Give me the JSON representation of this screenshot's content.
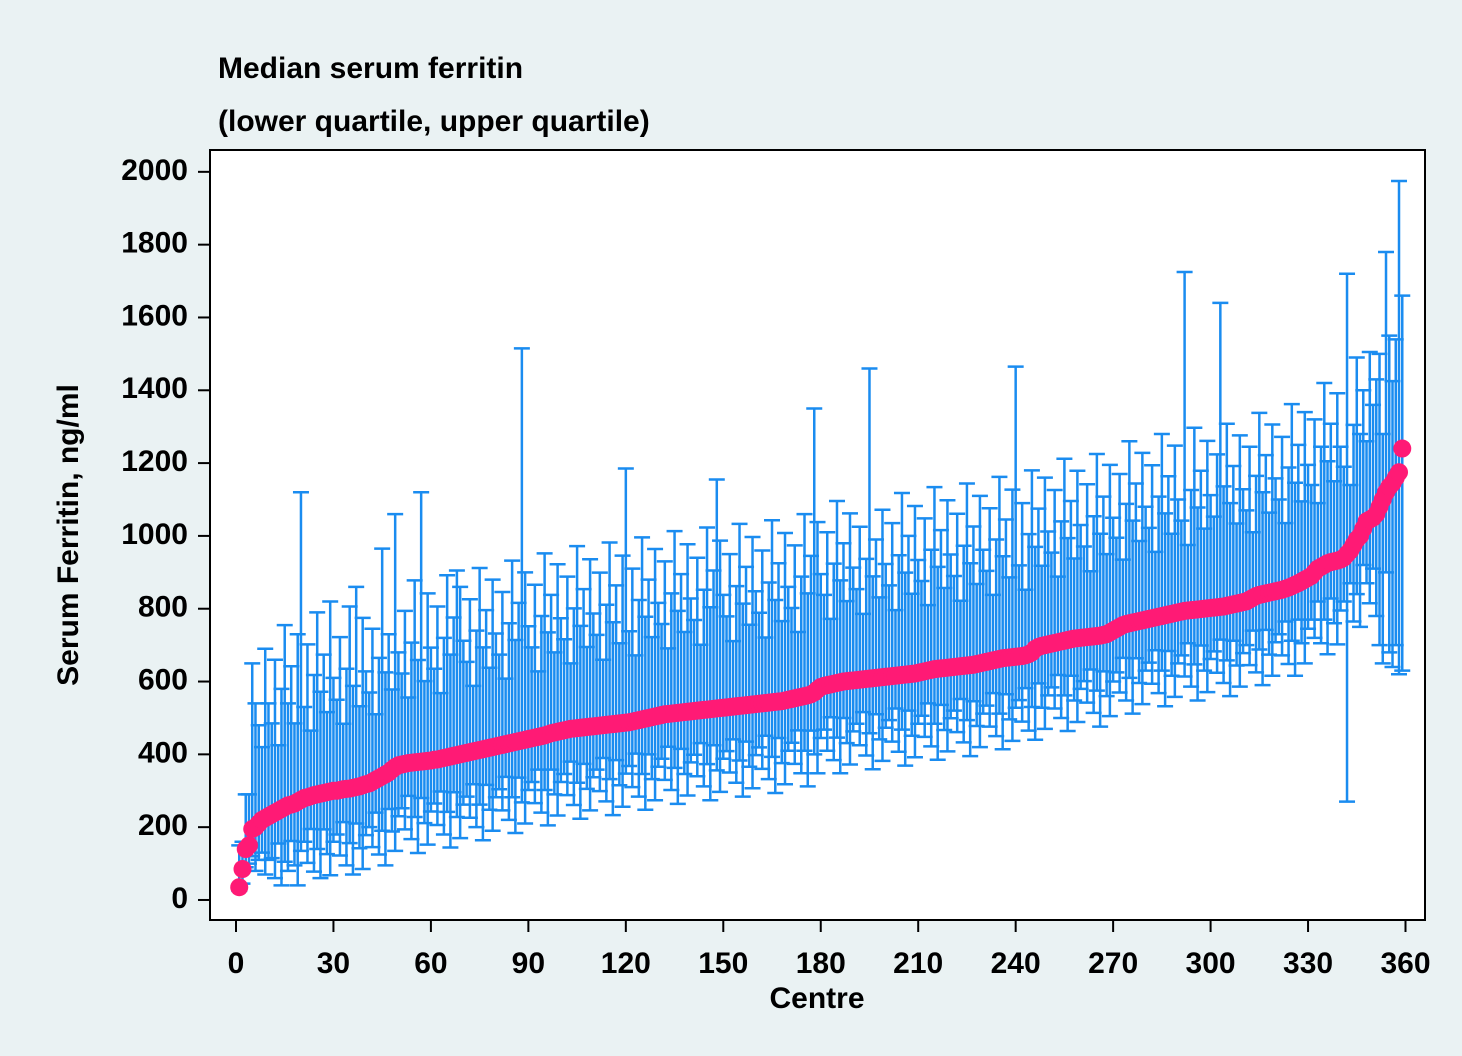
{
  "chart_data": {
    "type": "errorbar",
    "title": "Median serum ferritin",
    "subtitle": "(lower quartile, upper quartile)",
    "x_label": "Centre",
    "y_label": "Serum Ferritin, ng/ml",
    "xlim": [
      -8,
      366
    ],
    "xticks": [
      0,
      30,
      60,
      90,
      120,
      150,
      180,
      210,
      240,
      270,
      300,
      330,
      360
    ],
    "ylim": [
      -55,
      2060
    ],
    "yticks": [
      0,
      200,
      400,
      600,
      800,
      1000,
      1200,
      1400,
      1600,
      1800,
      2000
    ],
    "color": "#1a8cf0",
    "point_color": "#ff1a75",
    "x": [
      1,
      2,
      3,
      4,
      5,
      6,
      7,
      8,
      9,
      10,
      11,
      12,
      13,
      14,
      15,
      16,
      17,
      18,
      19,
      20,
      21,
      22,
      23,
      24,
      25,
      26,
      27,
      28,
      29,
      30,
      31,
      32,
      33,
      34,
      35,
      36,
      37,
      38,
      39,
      40,
      41,
      42,
      43,
      44,
      45,
      46,
      47,
      48,
      49,
      50,
      51,
      52,
      53,
      54,
      55,
      56,
      57,
      58,
      59,
      60,
      61,
      62,
      63,
      64,
      65,
      66,
      67,
      68,
      69,
      70,
      71,
      72,
      73,
      74,
      75,
      76,
      77,
      78,
      79,
      80,
      81,
      82,
      83,
      84,
      85,
      86,
      87,
      88,
      89,
      90,
      91,
      92,
      93,
      94,
      95,
      96,
      97,
      98,
      99,
      100,
      101,
      102,
      103,
      104,
      105,
      106,
      107,
      108,
      109,
      110,
      111,
      112,
      113,
      114,
      115,
      116,
      117,
      118,
      119,
      120,
      121,
      122,
      123,
      124,
      125,
      126,
      127,
      128,
      129,
      130,
      131,
      132,
      133,
      134,
      135,
      136,
      137,
      138,
      139,
      140,
      141,
      142,
      143,
      144,
      145,
      146,
      147,
      148,
      149,
      150,
      151,
      152,
      153,
      154,
      155,
      156,
      157,
      158,
      159,
      160,
      161,
      162,
      163,
      164,
      165,
      166,
      167,
      168,
      169,
      170,
      171,
      172,
      173,
      174,
      175,
      176,
      177,
      178,
      179,
      180,
      181,
      182,
      183,
      184,
      185,
      186,
      187,
      188,
      189,
      190,
      191,
      192,
      193,
      194,
      195,
      196,
      197,
      198,
      199,
      200,
      201,
      202,
      203,
      204,
      205,
      206,
      207,
      208,
      209,
      210,
      211,
      212,
      213,
      214,
      215,
      216,
      217,
      218,
      219,
      220,
      221,
      222,
      223,
      224,
      225,
      226,
      227,
      228,
      229,
      230,
      231,
      232,
      233,
      234,
      235,
      236,
      237,
      238,
      239,
      240,
      241,
      242,
      243,
      244,
      245,
      246,
      247,
      248,
      249,
      250,
      251,
      252,
      253,
      254,
      255,
      256,
      257,
      258,
      259,
      260,
      261,
      262,
      263,
      264,
      265,
      266,
      267,
      268,
      269,
      270,
      271,
      272,
      273,
      274,
      275,
      276,
      277,
      278,
      279,
      280,
      281,
      282,
      283,
      284,
      285,
      286,
      287,
      288,
      289,
      290,
      291,
      292,
      293,
      294,
      295,
      296,
      297,
      298,
      299,
      300,
      301,
      302,
      303,
      304,
      305,
      306,
      307,
      308,
      309,
      310,
      311,
      312,
      313,
      314,
      315,
      316,
      317,
      318,
      319,
      320,
      321,
      322,
      323,
      324,
      325,
      326,
      327,
      328,
      329,
      330,
      331,
      332,
      333,
      334,
      335,
      336,
      337,
      338,
      339,
      340,
      341,
      342,
      343,
      344,
      345,
      346,
      347,
      348,
      349,
      350,
      351,
      352,
      353,
      354,
      355,
      356,
      357,
      358,
      359
    ],
    "values": [
      35,
      85,
      140,
      150,
      195,
      200,
      210,
      220,
      225,
      230,
      235,
      240,
      245,
      250,
      255,
      260,
      262,
      265,
      270,
      275,
      280,
      282,
      285,
      288,
      290,
      292,
      294,
      296,
      298,
      300,
      300,
      302,
      304,
      305,
      306,
      308,
      310,
      312,
      315,
      318,
      320,
      325,
      330,
      335,
      340,
      345,
      350,
      358,
      365,
      370,
      372,
      374,
      376,
      377,
      378,
      379,
      380,
      381,
      382,
      383,
      385,
      386,
      388,
      390,
      392,
      394,
      396,
      398,
      400,
      402,
      404,
      406,
      408,
      410,
      412,
      414,
      416,
      418,
      420,
      422,
      424,
      426,
      428,
      430,
      432,
      434,
      436,
      438,
      440,
      442,
      444,
      446,
      448,
      450,
      452,
      455,
      458,
      460,
      462,
      464,
      466,
      468,
      470,
      471,
      472,
      473,
      474,
      475,
      476,
      477,
      478,
      479,
      480,
      481,
      482,
      483,
      484,
      485,
      486,
      487,
      488,
      490,
      492,
      494,
      496,
      498,
      500,
      502,
      504,
      506,
      508,
      510,
      511,
      512,
      513,
      514,
      515,
      516,
      517,
      518,
      519,
      520,
      521,
      522,
      523,
      524,
      525,
      526,
      527,
      528,
      529,
      530,
      531,
      532,
      533,
      534,
      535,
      536,
      537,
      538,
      539,
      540,
      541,
      542,
      543,
      544,
      545,
      546,
      548,
      550,
      552,
      554,
      556,
      558,
      560,
      562,
      565,
      570,
      578,
      585,
      588,
      590,
      592,
      594,
      596,
      598,
      600,
      601,
      602,
      603,
      604,
      605,
      606,
      607,
      608,
      609,
      610,
      611,
      612,
      613,
      614,
      615,
      616,
      617,
      618,
      619,
      620,
      621,
      622,
      624,
      626,
      628,
      630,
      632,
      634,
      635,
      636,
      637,
      638,
      639,
      640,
      641,
      642,
      643,
      644,
      645,
      646,
      648,
      650,
      652,
      654,
      656,
      658,
      660,
      662,
      664,
      665,
      666,
      667,
      668,
      669,
      670,
      672,
      675,
      680,
      690,
      695,
      698,
      700,
      702,
      704,
      706,
      708,
      710,
      712,
      714,
      716,
      718,
      719,
      720,
      721,
      722,
      723,
      724,
      725,
      726,
      728,
      730,
      735,
      740,
      745,
      750,
      755,
      758,
      760,
      762,
      764,
      766,
      768,
      770,
      772,
      774,
      776,
      778,
      780,
      782,
      784,
      786,
      788,
      790,
      792,
      794,
      795,
      796,
      797,
      798,
      799,
      800,
      801,
      802,
      803,
      804,
      805,
      806,
      808,
      810,
      812,
      814,
      816,
      818,
      820,
      825,
      830,
      835,
      838,
      840,
      842,
      844,
      846,
      848,
      850,
      852,
      855,
      858,
      862,
      866,
      870,
      875,
      880,
      885,
      890,
      900,
      910,
      915,
      920,
      925,
      928,
      930,
      932,
      935,
      940,
      950,
      960,
      975,
      990,
      1000,
      1020,
      1040,
      1045,
      1050,
      1060,
      1080,
      1100,
      1120,
      1135,
      1145,
      1160,
      1175,
      1240
    ],
    "lower": [
      25,
      45,
      90,
      100,
      120,
      80,
      110,
      130,
      70,
      110,
      115,
      60,
      155,
      40,
      105,
      80,
      162,
      95,
      40,
      135,
      160,
      102,
      195,
      78,
      140,
      60,
      194,
      126,
      68,
      160,
      180,
      122,
      214,
      95,
      156,
      70,
      210,
      142,
      85,
      178,
      200,
      145,
      240,
      125,
      190,
      95,
      250,
      188,
      135,
      230,
      252,
      194,
      286,
      167,
      228,
      129,
      280,
      211,
      152,
      243,
      265,
      206,
      298,
      180,
      242,
      144,
      296,
      228,
      170,
      262,
      284,
      226,
      318,
      200,
      262,
      164,
      316,
      248,
      190,
      282,
      304,
      246,
      338,
      220,
      282,
      184,
      336,
      268,
      210,
      302,
      324,
      266,
      358,
      240,
      302,
      205,
      358,
      290,
      232,
      324,
      346,
      288,
      380,
      261,
      322,
      223,
      374,
      305,
      246,
      337,
      358,
      299,
      390,
      271,
      332,
      233,
      384,
      315,
      256,
      347,
      368,
      310,
      402,
      284,
      346,
      248,
      400,
      332,
      274,
      366,
      388,
      330,
      421,
      302,
      363,
      264,
      415,
      346,
      287,
      378,
      399,
      340,
      431,
      312,
      373,
      274,
      425,
      356,
      297,
      388,
      409,
      350,
      441,
      322,
      383,
      284,
      435,
      366,
      307,
      398,
      419,
      360,
      451,
      332,
      393,
      294,
      445,
      376,
      318,
      410,
      432,
      374,
      466,
      348,
      410,
      312,
      465,
      400,
      348,
      445,
      468,
      410,
      502,
      384,
      446,
      348,
      500,
      431,
      372,
      463,
      484,
      425,
      516,
      397,
      458,
      359,
      510,
      441,
      382,
      473,
      494,
      435,
      526,
      407,
      468,
      369,
      520,
      451,
      392,
      484,
      506,
      448,
      540,
      422,
      484,
      385,
      536,
      467,
      408,
      499,
      520,
      461,
      552,
      433,
      494,
      395,
      546,
      478,
      420,
      512,
      534,
      476,
      568,
      450,
      512,
      414,
      565,
      496,
      437,
      528,
      549,
      490,
      582,
      465,
      530,
      440,
      595,
      528,
      470,
      562,
      584,
      526,
      618,
      500,
      562,
      464,
      616,
      548,
      489,
      580,
      601,
      542,
      633,
      514,
      575,
      476,
      628,
      560,
      505,
      600,
      625,
      570,
      665,
      548,
      610,
      512,
      664,
      596,
      538,
      630,
      652,
      594,
      686,
      568,
      630,
      532,
      684,
      616,
      558,
      650,
      672,
      614,
      705,
      586,
      647,
      548,
      699,
      630,
      571,
      662,
      683,
      624,
      715,
      596,
      658,
      560,
      712,
      644,
      586,
      678,
      700,
      645,
      740,
      625,
      688,
      590,
      742,
      674,
      616,
      708,
      730,
      672,
      765,
      648,
      712,
      616,
      770,
      705,
      650,
      745,
      770,
      720,
      820,
      705,
      770,
      675,
      828,
      760,
      702,
      795,
      820,
      270,
      870,
      765,
      840,
      750,
      920,
      870,
      815,
      910,
      780,
      700,
      650,
      900,
      680,
      640,
      700,
      620,
      630
    ],
    "upper": [
      150,
      160,
      290,
      290,
      650,
      540,
      480,
      420,
      690,
      540,
      485,
      660,
      425,
      580,
      755,
      540,
      642,
      485,
      730,
      1120,
      530,
      702,
      465,
      618,
      790,
      572,
      674,
      516,
      820,
      610,
      550,
      722,
      484,
      635,
      806,
      588,
      860,
      532,
      775,
      628,
      570,
      745,
      510,
      665,
      965,
      625,
      730,
      578,
      1060,
      680,
      622,
      794,
      556,
      707,
      878,
      659,
      1120,
      601,
      842,
      693,
      635,
      806,
      568,
      720,
      892,
      674,
      776,
      905,
      860,
      712,
      654,
      826,
      588,
      740,
      912,
      694,
      796,
      638,
      880,
      732,
      674,
      846,
      608,
      760,
      932,
      714,
      816,
      1515,
      900,
      752,
      694,
      866,
      628,
      780,
      952,
      735,
      838,
      680,
      922,
      774,
      716,
      888,
      650,
      801,
      972,
      753,
      854,
      695,
      936,
      787,
      728,
      899,
      660,
      811,
      982,
      763,
      864,
      705,
      946,
      1185,
      738,
      910,
      672,
      824,
      996,
      778,
      880,
      722,
      964,
      816,
      758,
      930,
      691,
      842,
      1013,
      794,
      895,
      736,
      977,
      828,
      769,
      940,
      701,
      852,
      1023,
      804,
      905,
      1155,
      987,
      838,
      779,
      950,
      711,
      862,
      1033,
      814,
      915,
      756,
      997,
      848,
      789,
      960,
      721,
      872,
      1043,
      824,
      925,
      766,
      1008,
      860,
      802,
      974,
      736,
      888,
      1060,
      842,
      945,
      1350,
      1038,
      895,
      838,
      1010,
      772,
      924,
      1096,
      878,
      980,
      821,
      1062,
      913,
      854,
      1025,
      786,
      937,
      1460,
      889,
      990,
      831,
      1072,
      923,
      864,
      1035,
      796,
      947,
      1118,
      899,
      1000,
      841,
      1082,
      934,
      876,
      1048,
      810,
      962,
      1134,
      915,
      1016,
      857,
      1098,
      949,
      890,
      1061,
      822,
      973,
      1144,
      925,
      1026,
      868,
      1110,
      962,
      904,
      1076,
      838,
      990,
      1162,
      944,
      1045,
      886,
      1127,
      1465,
      919,
      1090,
      852,
      1005,
      1180,
      970,
      1075,
      918,
      1160,
      1012,
      954,
      1126,
      888,
      1040,
      1212,
      994,
      1096,
      938,
      1179,
      1030,
      971,
      1142,
      903,
      1054,
      1225,
      1006,
      1108,
      950,
      1195,
      1050,
      995,
      1170,
      935,
      1088,
      1260,
      1042,
      1144,
      986,
      1228,
      1080,
      1022,
      1194,
      956,
      1108,
      1280,
      1062,
      1164,
      1006,
      1248,
      1100,
      1042,
      1725,
      975,
      1126,
      1297,
      1078,
      1179,
      1020,
      1261,
      1112,
      1053,
      1224,
      1640,
      1136,
      1308,
      1090,
      1192,
      1034,
      1276,
      1128,
      1070,
      1245,
      1010,
      1165,
      1338,
      1120,
      1222,
      1064,
      1306,
      1158,
      1100,
      1272,
      1035,
      1188,
      1362,
      1146,
      1250,
      1095,
      1340,
      1195,
      1140,
      1320,
      1090,
      1245,
      1420,
      1205,
      1308,
      1150,
      1392,
      1245,
      1190,
      1720,
      1140,
      1305,
      1490,
      1280,
      1400,
      1260,
      1505,
      1360,
      1430,
      1500,
      1280,
      1780,
      1550,
      1425,
      1540,
      1975,
      1660
    ]
  }
}
